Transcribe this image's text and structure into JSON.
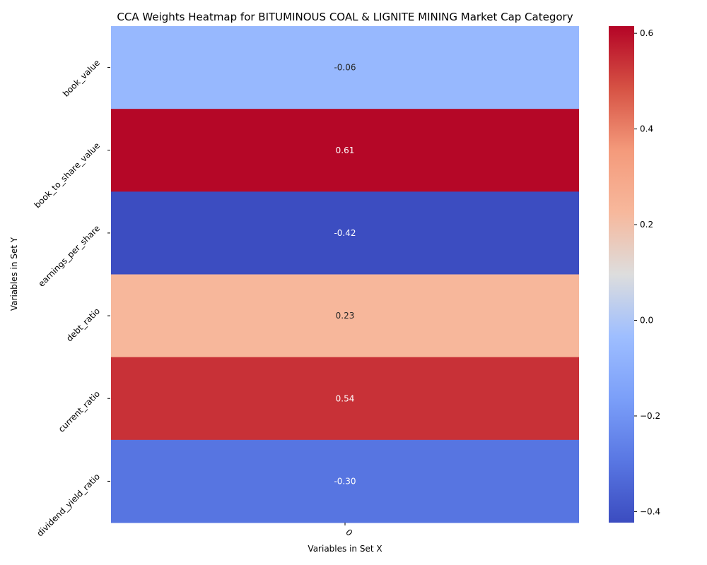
{
  "chart_data": {
    "type": "heatmap",
    "title": "CCA Weights Heatmap for BITUMINOUS COAL & LIGNITE MINING Market Cap Category",
    "xlabel": "Variables in Set X",
    "ylabel": "Variables in Set Y",
    "x_categories": [
      "0"
    ],
    "y_categories": [
      "book_value",
      "book_to_share_value",
      "earnings_per_share",
      "debt_ratio",
      "current_ratio",
      "dividend_yield_ratio"
    ],
    "values": [
      [
        -0.06
      ],
      [
        0.61
      ],
      [
        -0.42
      ],
      [
        0.23
      ],
      [
        0.54
      ],
      [
        -0.3
      ]
    ],
    "value_labels": [
      "-0.06",
      "0.61",
      "-0.42",
      "0.23",
      "0.54",
      "-0.30"
    ],
    "colormap": "coolwarm",
    "colorbar": {
      "vmin": -0.423,
      "vmax": 0.615,
      "ticks": [
        -0.4,
        -0.2,
        0.0,
        0.2,
        0.4,
        0.6
      ],
      "tick_labels": [
        "−0.4",
        "−0.2",
        "0.0",
        "0.2",
        "0.4",
        "0.6"
      ]
    }
  }
}
